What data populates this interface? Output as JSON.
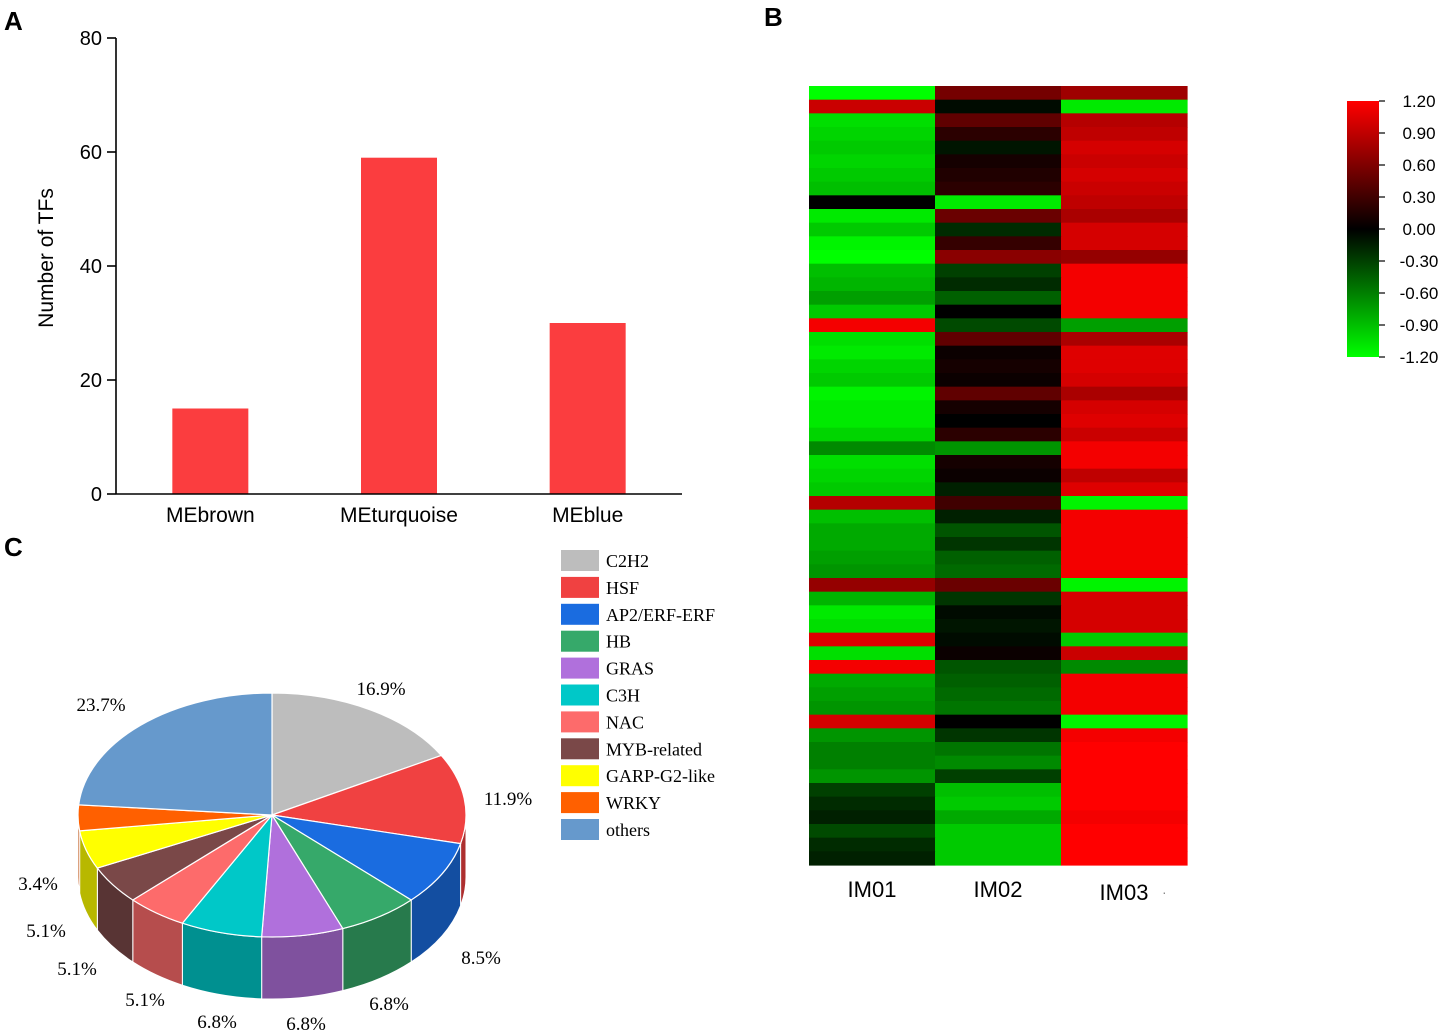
{
  "panel_labels": {
    "a": "A",
    "b": "B",
    "c": "C"
  },
  "chart_data": [
    {
      "panel": "A",
      "type": "bar",
      "title": "",
      "xlabel": "",
      "ylabel": "Number of TFs",
      "ylim": [
        0,
        80
      ],
      "yticks": [
        0,
        20,
        40,
        60,
        80
      ],
      "categories": [
        "MEbrown",
        "MEturquoise",
        "MEblue"
      ],
      "values": [
        15,
        59,
        30
      ],
      "bar_color": "#fb3d3f",
      "grid": false
    },
    {
      "panel": "B",
      "type": "heatmap",
      "columns": [
        "IM01",
        "IM02",
        "IM03"
      ],
      "trailing_mark": "·",
      "colorbar": {
        "min": -1.2,
        "max": 1.2,
        "tick_labels": [
          "1.20",
          "0.90",
          "0.60",
          "0.30",
          "0.00",
          "-0.30",
          "-0.60",
          "-0.90",
          "-1.20"
        ],
        "low_color": "#00ff00",
        "mid_color": "#000000",
        "high_color": "#ff0000"
      },
      "rows": [
        [
          -1.2,
          0.55,
          0.75
        ],
        [
          0.95,
          -0.05,
          -1.1
        ],
        [
          -1.05,
          0.45,
          0.85
        ],
        [
          -1.0,
          0.2,
          0.9
        ],
        [
          -0.95,
          -0.1,
          1.0
        ],
        [
          -1.0,
          0.1,
          0.95
        ],
        [
          -0.95,
          0.15,
          1.0
        ],
        [
          -0.9,
          0.2,
          0.95
        ],
        [
          0.0,
          -1.1,
          0.9
        ],
        [
          -1.1,
          0.5,
          0.8
        ],
        [
          -0.95,
          -0.2,
          1.0
        ],
        [
          -1.15,
          0.25,
          1.0
        ],
        [
          -1.2,
          0.65,
          0.7
        ],
        [
          -0.9,
          -0.3,
          1.15
        ],
        [
          -0.85,
          -0.2,
          1.15
        ],
        [
          -0.75,
          -0.45,
          1.15
        ],
        [
          -0.95,
          0.0,
          1.15
        ],
        [
          1.15,
          -0.35,
          -0.75
        ],
        [
          -1.05,
          0.45,
          0.8
        ],
        [
          -1.1,
          0.05,
          1.05
        ],
        [
          -1.0,
          0.1,
          1.05
        ],
        [
          -0.95,
          0.05,
          1.0
        ],
        [
          -1.15,
          0.45,
          0.8
        ],
        [
          -1.1,
          0.1,
          1.0
        ],
        [
          -1.1,
          0.0,
          1.05
        ],
        [
          -1.0,
          0.2,
          0.95
        ],
        [
          -0.65,
          -0.7,
          1.15
        ],
        [
          -1.05,
          0.1,
          1.15
        ],
        [
          -1.0,
          0.05,
          0.9
        ],
        [
          -0.95,
          -0.15,
          1.05
        ],
        [
          0.85,
          0.3,
          -1.15
        ],
        [
          -0.9,
          -0.15,
          1.15
        ],
        [
          -0.8,
          -0.4,
          1.15
        ],
        [
          -0.8,
          -0.25,
          1.15
        ],
        [
          -0.75,
          -0.45,
          1.15
        ],
        [
          -0.7,
          -0.5,
          1.15
        ],
        [
          0.7,
          0.5,
          -1.15
        ],
        [
          -0.85,
          -0.25,
          1.0
        ],
        [
          -1.1,
          -0.05,
          1.0
        ],
        [
          -1.05,
          -0.1,
          1.0
        ],
        [
          1.05,
          -0.05,
          -0.95
        ],
        [
          -1.05,
          0.05,
          0.95
        ],
        [
          1.15,
          -0.4,
          -0.65
        ],
        [
          -0.8,
          -0.45,
          1.15
        ],
        [
          -0.75,
          -0.5,
          1.15
        ],
        [
          -0.7,
          -0.55,
          1.15
        ],
        [
          1.0,
          0.0,
          -1.15
        ],
        [
          -0.7,
          -0.25,
          1.15
        ],
        [
          -0.6,
          -0.55,
          1.2
        ],
        [
          -0.6,
          -0.65,
          1.2
        ],
        [
          -0.7,
          -0.3,
          1.2
        ],
        [
          -0.3,
          -0.9,
          1.2
        ],
        [
          -0.2,
          -0.95,
          1.2
        ],
        [
          -0.15,
          -0.8,
          1.15
        ],
        [
          -0.35,
          -0.95,
          1.2
        ],
        [
          -0.2,
          -0.95,
          1.2
        ],
        [
          -0.15,
          -0.95,
          1.2
        ]
      ]
    },
    {
      "panel": "C",
      "type": "pie",
      "style": "3d",
      "legend_position": "right",
      "slices": [
        {
          "label": "C2H2",
          "value": 16.9,
          "value_label": "16.9%",
          "color": "#bdbdbd"
        },
        {
          "label": "HSF",
          "value": 11.9,
          "value_label": "11.9%",
          "color": "#f04141"
        },
        {
          "label": "AP2/ERF-ERF",
          "value": 8.5,
          "value_label": "8.5%",
          "color": "#1a6ce0"
        },
        {
          "label": "HB",
          "value": 6.8,
          "value_label": "6.8%",
          "color": "#36a96a"
        },
        {
          "label": "GRAS",
          "value": 6.8,
          "value_label": "6.8%",
          "color": "#b070dc"
        },
        {
          "label": "C3H",
          "value": 6.8,
          "value_label": "6.8%",
          "color": "#00c8c8"
        },
        {
          "label": "NAC",
          "value": 5.1,
          "value_label": "5.1%",
          "color": "#fd6b6b"
        },
        {
          "label": "MYB-related",
          "value": 5.1,
          "value_label": "5.1%",
          "color": "#7a4848"
        },
        {
          "label": "GARP-G2-like",
          "value": 5.1,
          "value_label": "5.1%",
          "color": "#ffff00"
        },
        {
          "label": "WRKY",
          "value": 3.4,
          "value_label": "3.4%",
          "color": "#ff6000"
        },
        {
          "label": "others",
          "value": 23.7,
          "value_label": "23.7%",
          "color": "#6699cc"
        }
      ]
    }
  ]
}
